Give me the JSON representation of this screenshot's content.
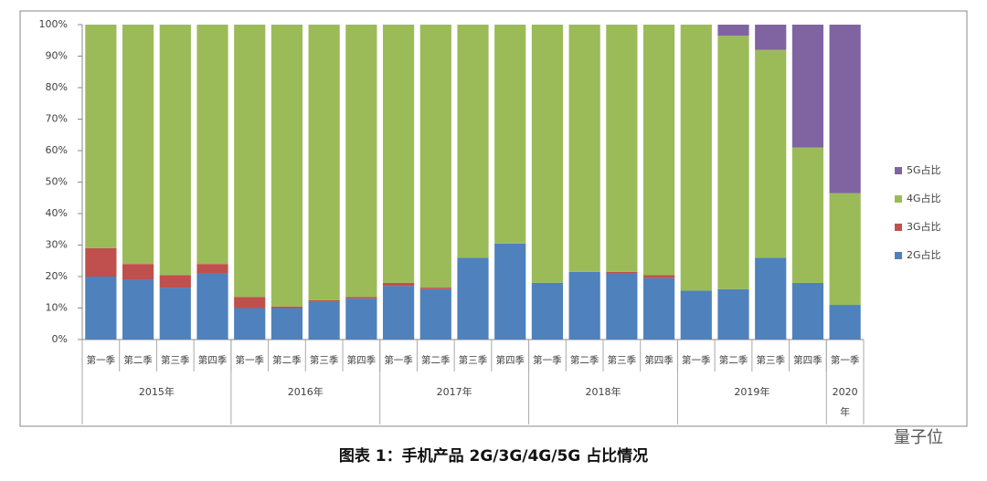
{
  "chart_data": {
    "type": "stacked_bar",
    "title": "图表 1：手机产品 2G/3G/4G/5G 占比情况",
    "watermark": "量子位",
    "groups": [
      {
        "label": "2015年",
        "categories": [
          "第一季",
          "第二季",
          "第三季",
          "第四季"
        ]
      },
      {
        "label": "2016年",
        "categories": [
          "第一季",
          "第二季",
          "第三季",
          "第四季"
        ]
      },
      {
        "label": "2017年",
        "categories": [
          "第一季",
          "第二季",
          "第三季",
          "第四季"
        ]
      },
      {
        "label": "2018年",
        "categories": [
          "第一季",
          "第二季",
          "第三季",
          "第四季"
        ]
      },
      {
        "label": "2019年",
        "categories": [
          "第一季",
          "第二季",
          "第三季",
          "第四季"
        ]
      },
      {
        "label": "2020年",
        "categories": [
          "第一季"
        ]
      }
    ],
    "series": [
      {
        "name": "2G占比",
        "color": "#4f81bd",
        "values": [
          20,
          19,
          16.5,
          21,
          10,
          10,
          12,
          13,
          17,
          16,
          26,
          30.5,
          18,
          21.5,
          21,
          19.5,
          15.5,
          16,
          26,
          18,
          11
        ]
      },
      {
        "name": "3G占比",
        "color": "#c0504d",
        "values": [
          9,
          5,
          4,
          3,
          3.5,
          0.5,
          0.5,
          0.5,
          1,
          0.5,
          0,
          0,
          0,
          0,
          0.5,
          1,
          0,
          0,
          0,
          0,
          0
        ]
      },
      {
        "name": "4G占比",
        "color": "#9bbb59",
        "values": [
          71,
          76,
          79.5,
          76,
          86.5,
          89.5,
          87.5,
          86.5,
          82,
          83.5,
          74,
          69.5,
          82,
          78.5,
          78.5,
          79.5,
          84.5,
          80.5,
          66,
          43,
          35.5
        ]
      },
      {
        "name": "5G占比",
        "color": "#8064a2",
        "values": [
          0,
          0,
          0,
          0,
          0,
          0,
          0,
          0,
          0,
          0,
          0,
          0,
          0,
          0,
          0,
          0,
          0,
          3.5,
          8,
          39,
          53.5
        ]
      }
    ],
    "ylim": [
      0,
      100
    ],
    "yticks": [
      {
        "value": 0,
        "label": "0%"
      },
      {
        "value": 10,
        "label": "10%"
      },
      {
        "value": 20,
        "label": "20%"
      },
      {
        "value": 30,
        "label": "30%"
      },
      {
        "value": 40,
        "label": "40%"
      },
      {
        "value": 50,
        "label": "50%"
      },
      {
        "value": 60,
        "label": "60%"
      },
      {
        "value": 70,
        "label": "70%"
      },
      {
        "value": 80,
        "label": "80%"
      },
      {
        "value": 90,
        "label": "90%"
      },
      {
        "value": 100,
        "label": "100%"
      }
    ],
    "legend": "right"
  }
}
